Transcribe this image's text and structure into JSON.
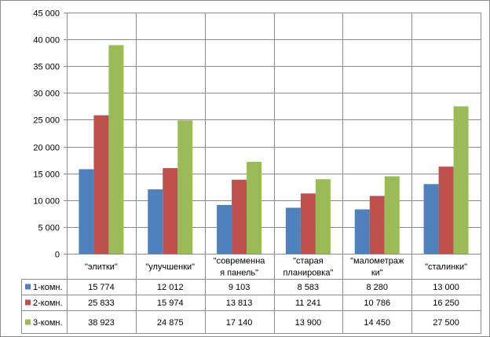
{
  "chart_data": {
    "type": "bar",
    "title": "",
    "xlabel": "",
    "ylabel": "",
    "ylim": [
      0,
      45000
    ],
    "yticks": [
      0,
      5000,
      10000,
      15000,
      20000,
      25000,
      30000,
      35000,
      40000,
      45000
    ],
    "ytick_labels": [
      "0",
      "5 000",
      "10 000",
      "15 000",
      "20 000",
      "25 000",
      "30 000",
      "35 000",
      "40 000",
      "45 000"
    ],
    "grid": true,
    "legend": "data-table",
    "categories": [
      [
        "\"элитки\""
      ],
      [
        "\"улучшенки\""
      ],
      [
        "\"современна",
        "я панель\""
      ],
      [
        "\"старая",
        "планировка\""
      ],
      [
        "\"малометраж",
        "ки\""
      ],
      [
        "\"сталинки\""
      ]
    ],
    "series": [
      {
        "name": "1-комн.",
        "color": "#4f81bd",
        "values": [
          15774,
          12012,
          9103,
          8583,
          8280,
          13000
        ],
        "labels": [
          "15 774",
          "12 012",
          "9 103",
          "8 583",
          "8 280",
          "13 000"
        ]
      },
      {
        "name": "2-комн.",
        "color": "#c0504d",
        "values": [
          25833,
          15974,
          13813,
          11241,
          10786,
          16250
        ],
        "labels": [
          "25 833",
          "15 974",
          "13 813",
          "11 241",
          "10 786",
          "16 250"
        ]
      },
      {
        "name": "3-комн.",
        "color": "#9bbb59",
        "values": [
          38923,
          24875,
          17140,
          13900,
          14450,
          27500
        ],
        "labels": [
          "38 923",
          "24 875",
          "17 140",
          "13 900",
          "14 450",
          "27 500"
        ]
      }
    ]
  }
}
